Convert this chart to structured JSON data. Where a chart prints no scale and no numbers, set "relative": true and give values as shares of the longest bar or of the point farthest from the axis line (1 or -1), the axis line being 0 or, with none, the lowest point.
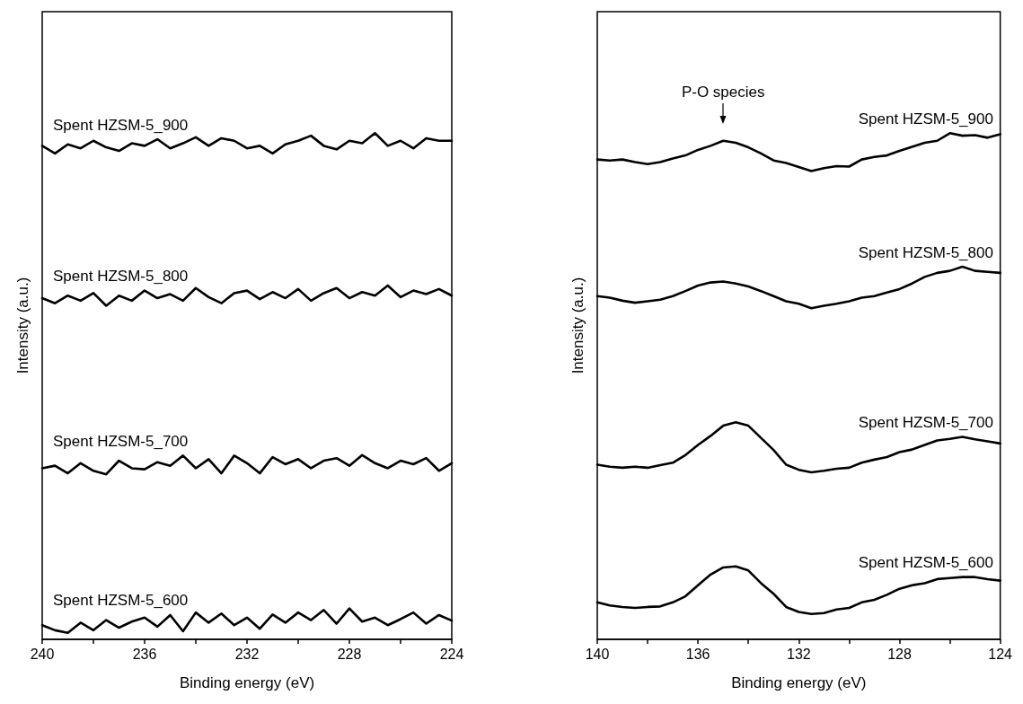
{
  "chart_data": [
    {
      "type": "line",
      "relative": true,
      "xlabel": "Binding energy (eV)",
      "ylabel": "Intensity (a.u.)",
      "xlim": [
        240,
        224
      ],
      "xticks": [
        240,
        {
          "value": 238,
          "label": null
        },
        236,
        {
          "value": 234,
          "label": null
        },
        232,
        {
          "value": 230,
          "label": null
        },
        228,
        {
          "value": 226,
          "label": null
        },
        224
      ],
      "tick_labels": "x",
      "legend": false,
      "grid": false,
      "marker": "none",
      "line_style": "solid",
      "x": [
        240,
        239.5,
        239,
        238.5,
        238,
        237.5,
        237,
        236.5,
        236,
        235.5,
        235,
        234.5,
        234,
        233.5,
        233,
        232.5,
        232,
        231.5,
        231,
        230.5,
        230,
        229.5,
        229,
        228.5,
        228,
        227.5,
        227,
        226.5,
        226,
        225.5,
        225,
        224.5,
        224
      ],
      "series": [
        {
          "name": "Spent HZSM-5_900",
          "color": "#000000",
          "values": [
            0.975,
            0.96,
            0.978,
            0.97,
            0.985,
            0.972,
            0.965,
            0.98,
            0.975,
            0.988,
            0.97,
            0.98,
            0.992,
            0.975,
            0.99,
            0.985,
            0.97,
            0.975,
            0.96,
            0.978,
            0.985,
            0.995,
            0.975,
            0.968,
            0.985,
            0.98,
            1.0,
            0.975,
            0.985,
            0.97,
            0.99,
            0.985,
            0.985
          ]
        },
        {
          "name": "Spent HZSM-5_800",
          "color": "#000000",
          "values": [
            0.674,
            0.664,
            0.679,
            0.669,
            0.684,
            0.659,
            0.679,
            0.669,
            0.689,
            0.674,
            0.682,
            0.669,
            0.694,
            0.676,
            0.664,
            0.684,
            0.689,
            0.672,
            0.686,
            0.674,
            0.692,
            0.669,
            0.684,
            0.694,
            0.674,
            0.686,
            0.679,
            0.699,
            0.676,
            0.689,
            0.682,
            0.692,
            0.679
          ]
        },
        {
          "name": "Spent HZSM-5_700",
          "color": "#000000",
          "values": [
            0.338,
            0.343,
            0.328,
            0.348,
            0.333,
            0.326,
            0.353,
            0.338,
            0.336,
            0.35,
            0.343,
            0.363,
            0.338,
            0.356,
            0.328,
            0.363,
            0.348,
            0.328,
            0.36,
            0.346,
            0.356,
            0.338,
            0.353,
            0.358,
            0.343,
            0.364,
            0.348,
            0.338,
            0.353,
            0.346,
            0.358,
            0.333,
            0.348
          ]
        },
        {
          "name": "Spent HZSM-5_600",
          "color": "#000000",
          "values": [
            0.028,
            0.018,
            0.013,
            0.033,
            0.018,
            0.038,
            0.023,
            0.035,
            0.043,
            0.025,
            0.048,
            0.016,
            0.053,
            0.033,
            0.051,
            0.028,
            0.043,
            0.021,
            0.049,
            0.033,
            0.053,
            0.038,
            0.058,
            0.031,
            0.061,
            0.035,
            0.043,
            0.028,
            0.04,
            0.053,
            0.031,
            0.048,
            0.037
          ]
        }
      ]
    },
    {
      "type": "line",
      "relative": true,
      "xlabel": "Binding energy (eV)",
      "ylabel": "Intensity (a.u.)",
      "xlim": [
        140,
        124
      ],
      "xticks": [
        140,
        {
          "value": 138,
          "label": null
        },
        136,
        {
          "value": 134,
          "label": null
        },
        132,
        {
          "value": 130,
          "label": null
        },
        128,
        {
          "value": 126,
          "label": null
        },
        124
      ],
      "tick_labels": "x",
      "legend": false,
      "grid": false,
      "marker": "none",
      "line_style": "solid",
      "annotations": [
        {
          "text": "P-O species",
          "x": 135,
          "y": 0.985
        }
      ],
      "x": [
        140,
        139.5,
        139,
        138.5,
        138,
        137.5,
        137,
        136.5,
        136,
        135.5,
        135,
        134.5,
        134,
        133.5,
        133,
        132.5,
        132,
        131.5,
        131,
        130.5,
        130,
        129.5,
        129,
        128.5,
        128,
        127.5,
        127,
        126.5,
        126,
        125.5,
        125,
        124.5,
        124
      ],
      "series": [
        {
          "name": "Spent HZSM-5_900",
          "color": "#000000",
          "values": [
            0.948,
            0.946,
            0.948,
            0.943,
            0.939,
            0.943,
            0.95,
            0.956,
            0.967,
            0.975,
            0.985,
            0.981,
            0.972,
            0.96,
            0.946,
            0.941,
            0.933,
            0.925,
            0.931,
            0.935,
            0.934,
            0.948,
            0.953,
            0.956,
            0.965,
            0.973,
            0.981,
            0.985,
            1.0,
            0.995,
            0.996,
            0.991,
            0.998
          ]
        },
        {
          "name": "Spent HZSM-5_800",
          "color": "#000000",
          "values": [
            0.678,
            0.675,
            0.669,
            0.665,
            0.668,
            0.671,
            0.678,
            0.688,
            0.699,
            0.705,
            0.707,
            0.703,
            0.697,
            0.688,
            0.678,
            0.668,
            0.663,
            0.654,
            0.659,
            0.663,
            0.668,
            0.675,
            0.678,
            0.685,
            0.692,
            0.703,
            0.716,
            0.724,
            0.728,
            0.736,
            0.728,
            0.726,
            0.724
          ]
        },
        {
          "name": "Spent HZSM-5_700",
          "color": "#000000",
          "values": [
            0.345,
            0.341,
            0.339,
            0.341,
            0.339,
            0.344,
            0.349,
            0.364,
            0.384,
            0.402,
            0.422,
            0.429,
            0.422,
            0.398,
            0.374,
            0.345,
            0.335,
            0.33,
            0.333,
            0.337,
            0.339,
            0.349,
            0.355,
            0.36,
            0.37,
            0.375,
            0.384,
            0.393,
            0.396,
            0.4,
            0.395,
            0.391,
            0.387
          ]
        },
        {
          "name": "Spent HZSM-5_600",
          "color": "#000000",
          "values": [
            0.073,
            0.067,
            0.064,
            0.062,
            0.064,
            0.065,
            0.073,
            0.085,
            0.107,
            0.128,
            0.142,
            0.144,
            0.136,
            0.111,
            0.09,
            0.064,
            0.054,
            0.05,
            0.052,
            0.059,
            0.062,
            0.073,
            0.078,
            0.088,
            0.1,
            0.107,
            0.111,
            0.119,
            0.121,
            0.123,
            0.123,
            0.119,
            0.116
          ]
        }
      ]
    }
  ]
}
